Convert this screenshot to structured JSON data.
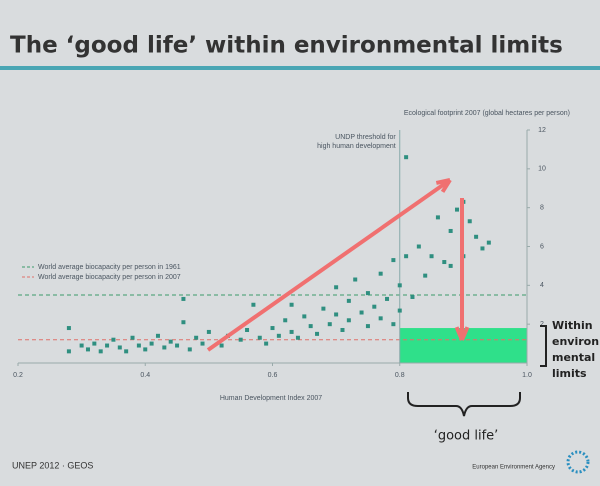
{
  "chart_data": {
    "type": "scatter",
    "title": "The ‘good life’ within environmental limits",
    "y_label": "Ecological footprint 2007 (global hectares per person)",
    "x_label": "Human Development Index 2007",
    "color": "#2f8f80",
    "xlim": [
      0.2,
      1.0
    ],
    "ylim": [
      0,
      12
    ],
    "xticks": [
      0.2,
      0.4,
      0.6,
      0.8,
      {
        "value": 1,
        "label": "1.0"
      }
    ],
    "yticks": [
      2,
      4,
      6,
      8,
      10,
      12
    ],
    "x": [
      0.28,
      0.28,
      0.3,
      0.31,
      0.32,
      0.33,
      0.34,
      0.35,
      0.36,
      0.37,
      0.38,
      0.39,
      0.4,
      0.41,
      0.42,
      0.43,
      0.44,
      0.45,
      0.46,
      0.47,
      0.48,
      0.49,
      0.5,
      0.52,
      0.53,
      0.55,
      0.56,
      0.58,
      0.59,
      0.6,
      0.61,
      0.62,
      0.63,
      0.64,
      0.65,
      0.66,
      0.67,
      0.68,
      0.69,
      0.7,
      0.71,
      0.72,
      0.72,
      0.73,
      0.74,
      0.75,
      0.75,
      0.76,
      0.77,
      0.77,
      0.78,
      0.79,
      0.79,
      0.8,
      0.8,
      0.81,
      0.82,
      0.83,
      0.84,
      0.85,
      0.86,
      0.87,
      0.87,
      0.88,
      0.88,
      0.89,
      0.9,
      0.9,
      0.91,
      0.92,
      0.93,
      0.94,
      0.81,
      0.46,
      0.57,
      0.63,
      0.7
    ],
    "y": [
      1.8,
      0.6,
      0.9,
      0.7,
      1.0,
      0.6,
      0.9,
      1.2,
      0.8,
      0.6,
      1.3,
      0.9,
      0.7,
      1.0,
      1.4,
      0.8,
      1.1,
      0.9,
      2.1,
      0.7,
      1.3,
      1.0,
      1.6,
      0.9,
      1.4,
      1.2,
      1.7,
      1.3,
      1.0,
      1.8,
      1.4,
      2.2,
      1.6,
      1.3,
      2.4,
      1.9,
      1.5,
      2.8,
      2.0,
      2.5,
      1.7,
      3.2,
      2.2,
      4.3,
      2.6,
      1.9,
      3.6,
      2.9,
      2.3,
      4.6,
      3.3,
      2.0,
      5.3,
      4.0,
      2.7,
      5.5,
      3.4,
      6.0,
      4.5,
      5.5,
      7.5,
      9.2,
      5.2,
      6.8,
      5.0,
      7.9,
      8.3,
      5.5,
      7.3,
      6.5,
      5.9,
      6.2,
      10.6,
      3.3,
      3.0,
      3.0,
      3.9
    ],
    "threshold": {
      "label": "UNDP threshold for high human development",
      "value": 0.8
    },
    "hlines": [
      {
        "label": "World average biocapacity per person in 1961",
        "value": 3.5,
        "color": "#3a9a6a"
      },
      {
        "label": "World average biocapacity per person in 2007",
        "value": 1.2,
        "color": "#e0706a"
      }
    ],
    "region": {
      "x": [
        0.8,
        1.0
      ],
      "y": [
        0,
        1.8
      ],
      "color": "#2fe08a",
      "label": [
        "Within",
        "environ",
        "mental",
        "limits"
      ],
      "bracket_label": "‘good life’"
    },
    "footer_left": "UNEP 2012 · GEOS",
    "footer_right": "European Environment Agency"
  }
}
